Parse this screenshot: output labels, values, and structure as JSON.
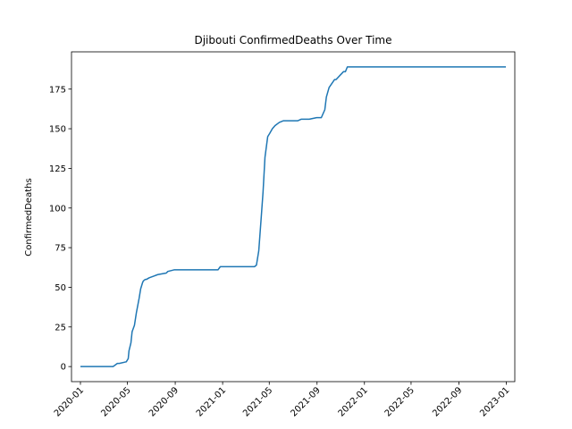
{
  "chart_data": {
    "type": "line",
    "title": "Djibouti  ConfirmedDeaths Over Time",
    "xlabel": "",
    "ylabel": "ConfirmedDeaths",
    "xlim": [
      "2019-12-09",
      "2023-01-23"
    ],
    "ylim": [
      -9.5,
      198.5
    ],
    "x_ticks": [
      "2020-01",
      "2020-05",
      "2020-09",
      "2021-01",
      "2021-05",
      "2021-09",
      "2022-01",
      "2022-05",
      "2022-09",
      "2023-01"
    ],
    "y_ticks": [
      0,
      25,
      50,
      75,
      100,
      125,
      150,
      175
    ],
    "grid": false,
    "line_color": "#1f77b4",
    "series": [
      {
        "x": [
          "2020-01-01",
          "2020-03-25",
          "2020-04-05",
          "2020-04-10",
          "2020-04-28",
          "2020-05-03",
          "2020-05-05",
          "2020-05-10",
          "2020-05-13",
          "2020-05-19",
          "2020-05-24",
          "2020-05-31",
          "2020-06-04",
          "2020-06-09",
          "2020-06-11",
          "2020-06-16",
          "2020-06-19",
          "2020-06-26",
          "2020-07-07",
          "2020-07-18",
          "2020-08-09",
          "2020-08-13",
          "2020-08-29",
          "2020-12-20",
          "2020-12-26",
          "2021-03-24",
          "2021-03-29",
          "2021-04-04",
          "2021-04-10",
          "2021-04-15",
          "2021-04-20",
          "2021-04-27",
          "2021-05-02",
          "2021-05-09",
          "2021-05-16",
          "2021-05-27",
          "2021-06-06",
          "2021-07-13",
          "2021-07-22",
          "2021-08-12",
          "2021-08-31",
          "2021-09-12",
          "2021-09-21",
          "2021-09-25",
          "2021-10-02",
          "2021-10-16",
          "2021-10-20",
          "2021-11-08",
          "2021-11-13",
          "2021-11-18",
          "2022-12-31"
        ],
        "y": [
          0,
          0,
          2,
          2,
          3,
          5,
          10,
          15,
          22,
          26,
          34,
          43,
          49,
          53,
          54,
          55,
          55,
          56,
          57,
          58,
          59,
          60,
          61,
          61,
          63,
          63,
          64,
          73,
          93,
          110,
          132,
          145,
          147,
          150,
          152,
          154,
          155,
          155,
          156,
          156,
          157,
          157,
          162,
          170,
          176,
          181,
          181,
          186,
          186,
          189,
          189
        ]
      }
    ]
  }
}
